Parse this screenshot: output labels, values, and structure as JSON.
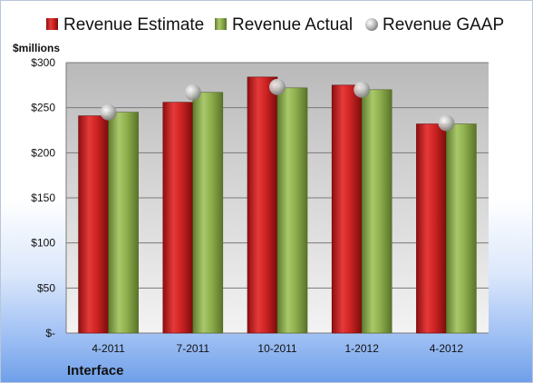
{
  "chart_data": {
    "type": "bar",
    "title": "",
    "unit_label": "$millions",
    "company": "Interface",
    "categories": [
      "4-2011",
      "7-2011",
      "10-2011",
      "1-2012",
      "4-2012"
    ],
    "series": [
      {
        "name": "Revenue Estimate",
        "kind": "bar",
        "color": "#cc1f1f",
        "values": [
          241,
          256,
          284,
          275,
          232
        ]
      },
      {
        "name": "Revenue Actual",
        "kind": "bar",
        "color": "#8fb04f",
        "values": [
          245,
          267,
          272,
          270,
          232
        ]
      },
      {
        "name": "Revenue GAAP",
        "kind": "marker",
        "color": "#b8b8b8",
        "values": [
          245,
          267,
          273,
          270,
          233
        ]
      }
    ],
    "ylim": [
      0,
      300
    ],
    "yticks": [
      0,
      50,
      100,
      150,
      200,
      250,
      300
    ],
    "ytick_labels": [
      "$-",
      "$50",
      "$100",
      "$150",
      "$200",
      "$250",
      "$300"
    ],
    "grid": true,
    "legend_position": "top"
  }
}
